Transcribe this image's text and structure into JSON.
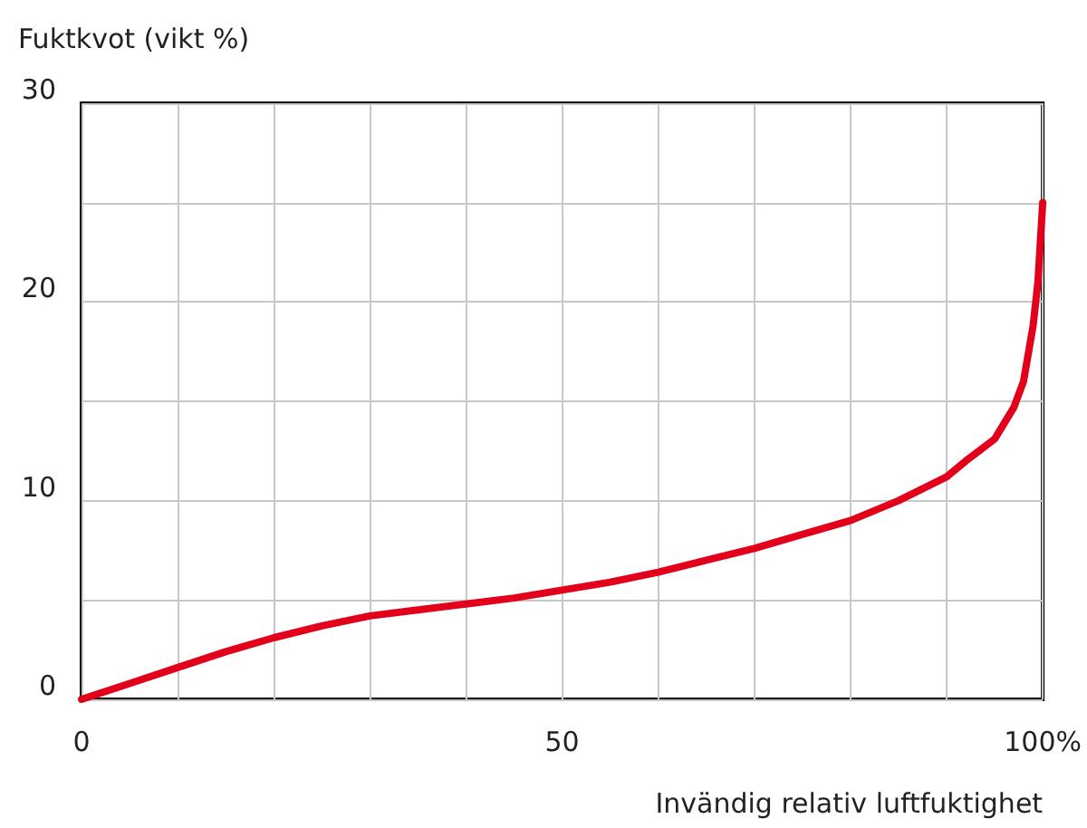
{
  "chart_data": {
    "type": "line",
    "ylabel": "Fuktkvot (vikt %)",
    "xlabel": "Invändig relativ luftfuktighet",
    "x": [
      0,
      5,
      10,
      15,
      20,
      25,
      30,
      35,
      40,
      45,
      50,
      55,
      60,
      65,
      70,
      75,
      80,
      85,
      90,
      92,
      95,
      97,
      98,
      99,
      99.5,
      100
    ],
    "series": [
      {
        "color": "#e2001a",
        "values": [
          0,
          0.8,
          1.6,
          2.4,
          3.1,
          3.7,
          4.2,
          4.5,
          4.8,
          5.1,
          5.5,
          5.9,
          6.4,
          7.0,
          7.6,
          8.3,
          9.0,
          10.0,
          11.2,
          12.0,
          13.1,
          14.7,
          16.0,
          18.8,
          21,
          25
        ]
      }
    ],
    "xlim": [
      0,
      100
    ],
    "xticks": [
      0,
      {
        "value": 10,
        "label": null
      },
      {
        "value": 20,
        "label": null
      },
      {
        "value": 30,
        "label": null
      },
      {
        "value": 40,
        "label": null
      },
      50,
      {
        "value": 60,
        "label": null
      },
      {
        "value": 70,
        "label": null
      },
      {
        "value": 80,
        "label": null
      },
      {
        "value": 90,
        "label": null
      },
      {
        "value": 100,
        "label": "100%"
      }
    ],
    "ylim": [
      0,
      30
    ],
    "yticks": [
      0,
      {
        "value": 5,
        "label": null
      },
      10,
      {
        "value": 15,
        "label": null
      },
      20,
      {
        "value": 25,
        "label": null
      },
      30
    ],
    "grid": true,
    "line_style": "solid"
  }
}
